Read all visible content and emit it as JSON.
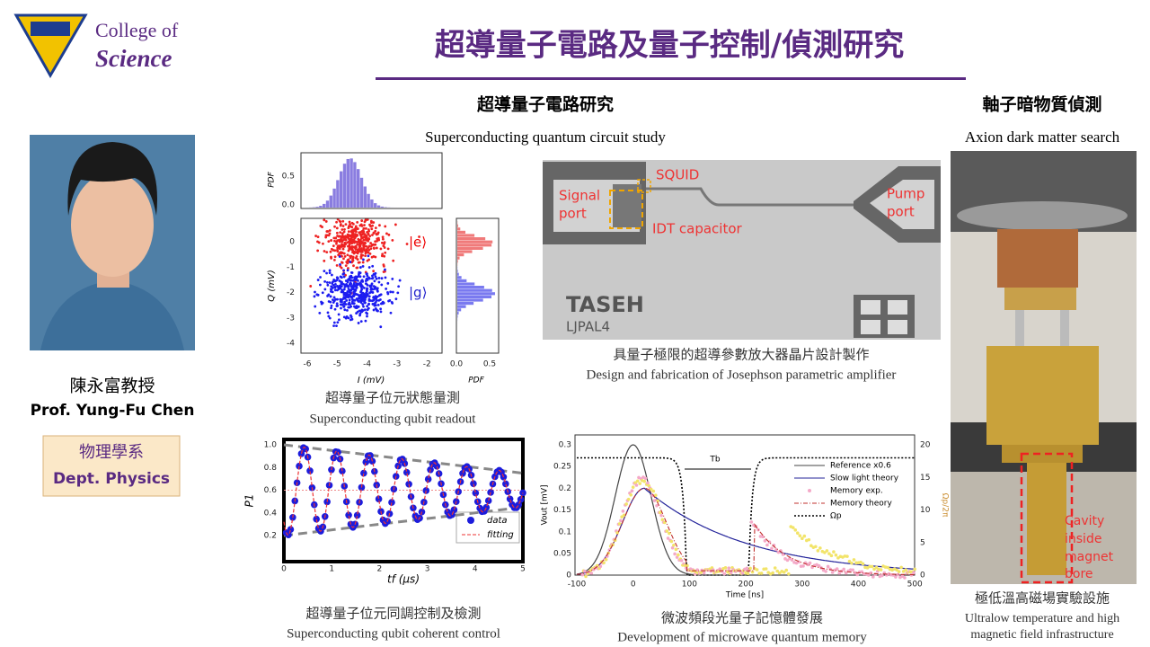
{
  "header": {
    "college": [
      "College of",
      "Science"
    ],
    "title": "超導量子電路及量子控制/偵測研究"
  },
  "profile": {
    "name_zh": "陳永富教授",
    "name_en": "Prof. Yung-Fu Chen",
    "dept_zh": "物理學系",
    "dept_en": "Dept. Physics"
  },
  "sections": [
    {
      "heading": "超導量子電路研究",
      "subheading": "Superconducting quantum circuit study"
    },
    {
      "heading": "軸子暗物質偵測",
      "subheading": "Axion dark matter search"
    }
  ],
  "figures": {
    "readout": {
      "caption_zh": "超導量子位元狀態量測",
      "caption_en": "Superconducting qubit readout",
      "x_label": "I (mV)",
      "y_label": "Q (mV)",
      "pdf_label": "PDF",
      "x_ticks": [
        "-6",
        "-5",
        "-4",
        "-3",
        "-2"
      ],
      "y_ticks": [
        "0",
        "-1",
        "-2",
        "-3",
        "-4"
      ],
      "top_ticks": [
        "0.5",
        "0.0"
      ],
      "right_ticks": [
        "0.0",
        "0.5"
      ],
      "states": [
        "|e⟩",
        "|g⟩"
      ]
    },
    "amplifier": {
      "caption_zh": "具量子極限的超導參數放大器晶片設計製作",
      "caption_en": "Design and fabrication of Josephson parametric amplifier",
      "squid": "SQUID",
      "signal": [
        "Signal",
        "port"
      ],
      "idt": "IDT capacitor",
      "pump": [
        "Pump",
        "port"
      ],
      "chip": "TASEH",
      "chip_id": "LJPAL4"
    },
    "rabi": {
      "caption_zh": "超導量子位元同調控制及檢測",
      "caption_en": "Superconducting qubit coherent control",
      "x_label": "tf (μs)",
      "y_label": "P1",
      "x_ticks": [
        "0",
        "1",
        "2",
        "3",
        "4",
        "5"
      ],
      "y_ticks": [
        "1.0",
        "0.8",
        "0.6",
        "0.4",
        "0.2"
      ],
      "legend": [
        "data",
        "fitting"
      ]
    },
    "memory": {
      "caption_zh": "微波頻段光量子記憶體發展",
      "caption_en": "Development of microwave quantum memory",
      "x_label": "Time [ns]",
      "y_label": "Vout [mV]",
      "y2_label": "Ωp/2π",
      "marker": "Tb",
      "x_ticks": [
        "-100",
        "0",
        "100",
        "200",
        "300",
        "400",
        "500"
      ],
      "y_ticks": [
        "0.3",
        "0.25",
        "0.2",
        "0.15",
        "0.1",
        "0.05",
        "0"
      ],
      "y2_ticks": [
        "20",
        "15",
        "10",
        "5",
        "0"
      ],
      "legend": [
        "Reference x0.6",
        "Slow light theory",
        "Memory exp.",
        "Memory theory",
        "Ωp"
      ]
    },
    "facility": {
      "caption_zh": "極低溫高磁場實驗設施",
      "caption_en": [
        "Ultralow temperature and high",
        "magnetic field infrastructure"
      ],
      "label": [
        "Cavity",
        "inside",
        "magnet",
        "bore"
      ]
    }
  }
}
